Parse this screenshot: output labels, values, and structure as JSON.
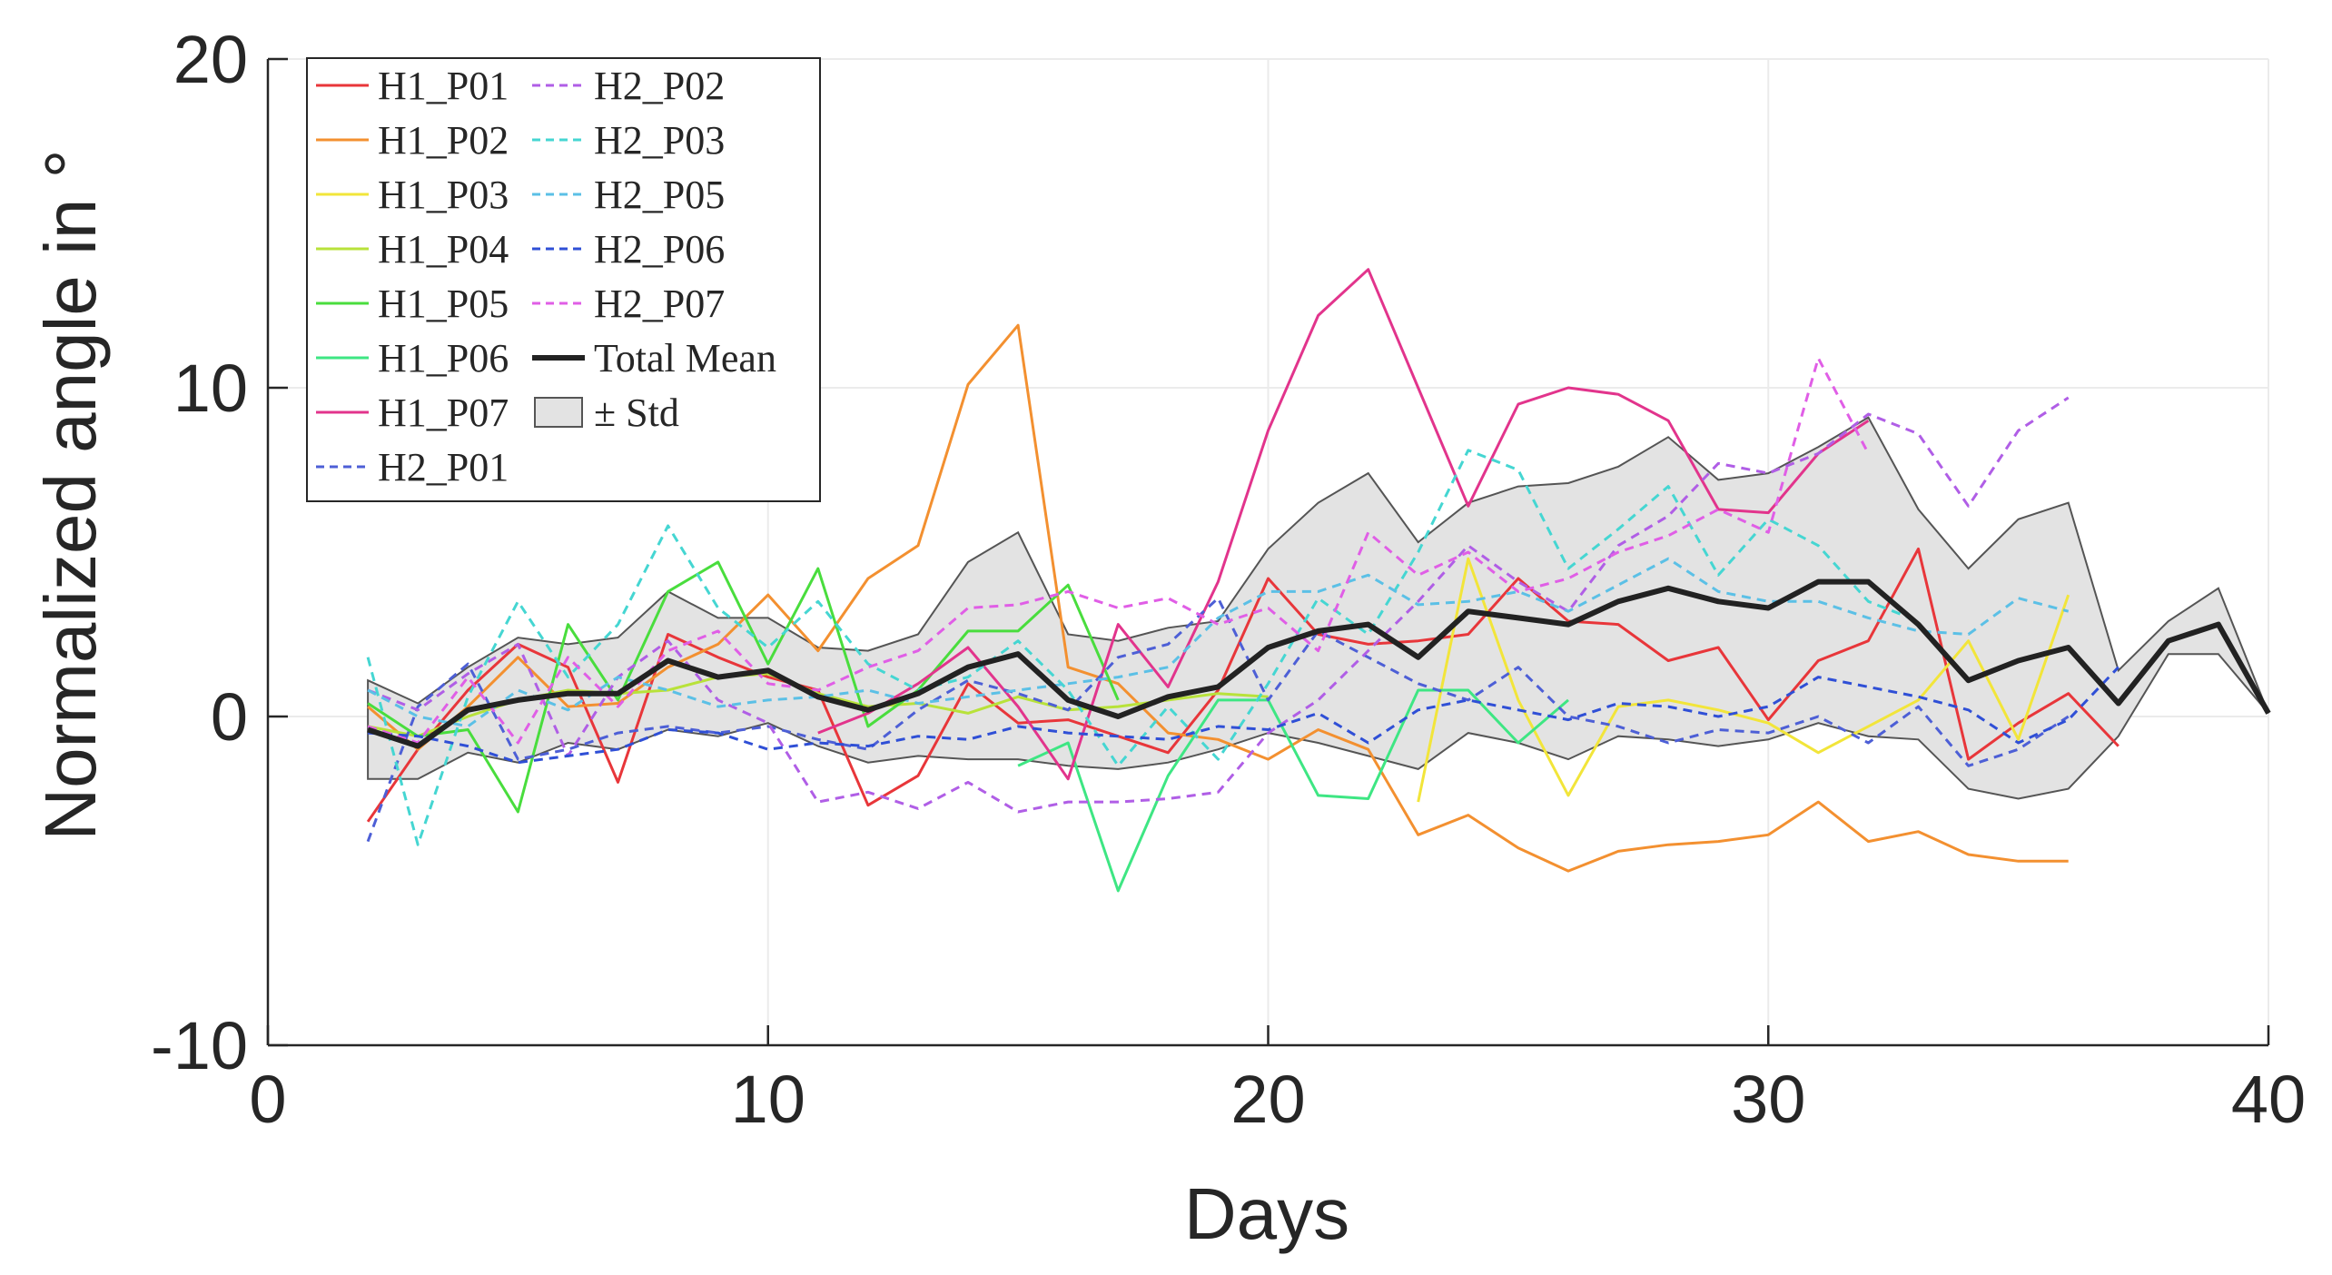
{
  "chart_data": {
    "type": "line",
    "title": "",
    "xlabel": "Days",
    "ylabel": "Normalized angle in °",
    "xlim": [
      0,
      40
    ],
    "ylim": [
      -10,
      20
    ],
    "xticks": [
      0,
      10,
      20,
      30,
      40
    ],
    "yticks": [
      -10,
      0,
      10,
      20
    ],
    "xtick_labels": [
      "0",
      "10",
      "20",
      "30",
      "40"
    ],
    "ytick_labels": [
      "-10",
      "0",
      "10",
      "20"
    ],
    "grid": true,
    "legend_position": "top-left",
    "series": [
      {
        "name": "H1_P01",
        "color": "#e8363a",
        "style": "solid",
        "x": [
          2,
          3,
          4,
          5,
          6,
          7,
          8,
          9,
          10,
          11,
          12,
          13,
          14,
          15,
          16,
          17,
          18,
          19,
          20,
          21,
          22,
          23,
          24,
          25,
          26,
          27,
          28,
          29,
          30,
          31,
          32,
          33,
          34,
          35,
          36,
          37
        ],
        "y": [
          -3.2,
          -1.0,
          0.8,
          2.2,
          1.5,
          -2.0,
          2.5,
          1.8,
          1.2,
          0.8,
          -2.7,
          -1.8,
          1.0,
          -0.2,
          -0.1,
          -0.6,
          -1.1,
          0.8,
          4.2,
          2.5,
          2.2,
          2.3,
          2.5,
          4.2,
          2.9,
          2.8,
          1.7,
          2.1,
          -0.1,
          1.7,
          2.3,
          5.1,
          -1.3,
          -0.2,
          0.7,
          -0.9
        ]
      },
      {
        "name": "H1_P02",
        "color": "#f39030",
        "style": "solid",
        "x": [
          2,
          3,
          4,
          5,
          6,
          7,
          8,
          9,
          10,
          11,
          12,
          13,
          14,
          15,
          16,
          17,
          18,
          19,
          20,
          21,
          22,
          23,
          24,
          25,
          26,
          27,
          28,
          29,
          30,
          31,
          32,
          33,
          34,
          35,
          36
        ],
        "y": [
          0.3,
          -1.0,
          0.3,
          1.8,
          0.3,
          0.4,
          1.5,
          2.2,
          3.7,
          2.0,
          4.2,
          5.2,
          10.1,
          11.9,
          1.5,
          1.0,
          -0.5,
          -0.7,
          -1.3,
          -0.4,
          -1.0,
          -3.6,
          -3.0,
          -4.0,
          -4.7,
          -4.1,
          -3.9,
          -3.8,
          -3.6,
          -2.6,
          -3.8,
          -3.5,
          -4.2,
          -4.4,
          -4.4
        ]
      },
      {
        "name": "H1_P03",
        "color": "#f2e53a",
        "style": "solid",
        "x": [
          23,
          24,
          25,
          26,
          27,
          28,
          29,
          30,
          31,
          32,
          33,
          34,
          35,
          36
        ],
        "y": [
          -2.6,
          4.8,
          0.5,
          -2.4,
          0.3,
          0.5,
          0.2,
          -0.2,
          -1.1,
          -0.3,
          0.5,
          2.3,
          -0.7,
          3.7
        ]
      },
      {
        "name": "H1_P04",
        "color": "#b8e23a",
        "style": "solid",
        "x": [
          2,
          3,
          4,
          5,
          6,
          7,
          8,
          9,
          10,
          11,
          12,
          13,
          14,
          15,
          16,
          17,
          18,
          19,
          20
        ],
        "y": [
          -0.3,
          -0.6,
          0.0,
          0.5,
          0.8,
          0.7,
          0.8,
          1.2,
          1.3,
          0.7,
          0.3,
          0.4,
          0.1,
          0.6,
          0.2,
          0.3,
          0.5,
          0.7,
          0.6
        ]
      },
      {
        "name": "H1_P05",
        "color": "#49dd3d",
        "style": "solid",
        "x": [
          2,
          3,
          4,
          5,
          6,
          7,
          8,
          9,
          10,
          11,
          12,
          13,
          14,
          15,
          16,
          17
        ],
        "y": [
          0.4,
          -0.6,
          -0.4,
          -2.9,
          2.8,
          0.5,
          3.8,
          4.7,
          1.6,
          4.5,
          -0.3,
          0.8,
          2.6,
          2.6,
          4.0,
          0.5
        ]
      },
      {
        "name": "H1_P06",
        "color": "#3ee683",
        "style": "solid",
        "x": [
          15,
          16,
          17,
          18,
          19,
          20,
          21,
          22,
          23,
          24,
          25,
          26
        ],
        "y": [
          -1.5,
          -0.8,
          -5.3,
          -1.8,
          0.5,
          0.5,
          -2.4,
          -2.5,
          0.8,
          0.8,
          -0.8,
          0.5
        ]
      },
      {
        "name": "H1_P07",
        "color": "#e2348c",
        "style": "solid",
        "x": [
          11,
          12,
          13,
          14,
          15,
          16,
          17,
          18,
          19,
          20,
          21,
          22,
          23,
          24,
          25,
          26,
          27,
          28,
          29,
          30,
          31,
          32
        ],
        "y": [
          -0.5,
          0.1,
          1.0,
          2.1,
          0.3,
          -1.9,
          2.8,
          0.9,
          4.1,
          8.7,
          12.2,
          13.6,
          10.0,
          6.4,
          9.5,
          10.0,
          9.8,
          9.0,
          6.3,
          6.2,
          8.0,
          9.0
        ]
      },
      {
        "name": "H2_P01",
        "color": "#4d5fd6",
        "style": "dashed",
        "x": [
          2,
          3,
          4,
          5,
          6,
          7,
          8,
          9,
          10,
          11,
          12,
          13,
          14,
          15,
          16,
          17,
          18,
          19,
          20,
          21,
          22,
          23,
          24,
          25,
          26,
          27,
          28,
          29,
          30,
          31,
          32,
          33,
          34,
          35,
          36
        ],
        "y": [
          -3.8,
          0.3,
          1.6,
          -1.3,
          -1.0,
          -0.5,
          -0.3,
          -0.5,
          -0.3,
          -0.7,
          -1.0,
          0.2,
          1.1,
          0.7,
          0.2,
          1.8,
          2.2,
          3.6,
          0.5,
          2.6,
          1.8,
          1.0,
          0.5,
          1.5,
          0.0,
          -0.3,
          -0.8,
          -0.4,
          -0.5,
          0.0,
          -0.8,
          0.3,
          -1.5,
          -1.0,
          0.0
        ]
      },
      {
        "name": "H2_P02",
        "color": "#b05ee6",
        "style": "dashed",
        "x": [
          2,
          3,
          4,
          5,
          6,
          7,
          8,
          9,
          10,
          11,
          12,
          13,
          14,
          15,
          16,
          17,
          18,
          19,
          20,
          21,
          22,
          23,
          24,
          25,
          26,
          27,
          28,
          29,
          30,
          31,
          32,
          33,
          34,
          35,
          36
        ],
        "y": [
          0.8,
          0.2,
          1.3,
          2.2,
          -1.2,
          1.2,
          2.3,
          0.5,
          -0.2,
          -2.6,
          -2.3,
          -2.8,
          -2.0,
          -2.9,
          -2.6,
          -2.6,
          -2.5,
          -2.3,
          -0.5,
          0.5,
          2.0,
          3.5,
          5.2,
          4.1,
          3.2,
          5.2,
          6.1,
          7.7,
          7.4,
          8.0,
          9.2,
          8.6,
          6.4,
          8.7,
          9.7
        ]
      },
      {
        "name": "H2_P03",
        "color": "#45d6d2",
        "style": "dashed",
        "x": [
          2,
          3,
          4,
          5,
          6,
          7,
          8,
          9,
          10,
          11,
          12,
          13,
          14,
          15,
          16,
          17,
          18,
          19,
          20,
          21,
          22,
          23,
          24,
          25,
          26,
          27,
          28,
          29,
          30,
          31,
          32,
          33
        ],
        "y": [
          1.8,
          -3.9,
          0.6,
          3.5,
          1.2,
          2.8,
          5.8,
          3.3,
          2.1,
          3.5,
          1.6,
          0.8,
          1.2,
          2.3,
          0.8,
          -1.5,
          0.3,
          -1.3,
          1.0,
          3.6,
          2.5,
          5.0,
          8.1,
          7.5,
          4.5,
          5.7,
          7.0,
          4.3,
          6.0,
          5.2,
          3.5,
          2.9
        ]
      },
      {
        "name": "H2_P05",
        "color": "#5bc0e6",
        "style": "dashed",
        "x": [
          2,
          3,
          4,
          5,
          6,
          7,
          8,
          9,
          10,
          11,
          12,
          13,
          14,
          15,
          16,
          17,
          18,
          19,
          20,
          21,
          22,
          23,
          24,
          25,
          26,
          27,
          28,
          29,
          30,
          31,
          32,
          33,
          34,
          35,
          36
        ],
        "y": [
          0.8,
          0.0,
          -0.3,
          0.8,
          0.2,
          1.2,
          0.8,
          0.3,
          0.5,
          0.6,
          0.8,
          0.4,
          0.6,
          0.8,
          1.0,
          1.2,
          1.5,
          3.0,
          3.8,
          3.8,
          4.3,
          3.4,
          3.5,
          3.8,
          3.2,
          4.0,
          4.8,
          3.8,
          3.5,
          3.5,
          3.0,
          2.6,
          2.5,
          3.6,
          3.2
        ]
      },
      {
        "name": "H2_P06",
        "color": "#2f4fd6",
        "style": "dashed",
        "x": [
          2,
          3,
          4,
          5,
          6,
          7,
          8,
          9,
          10,
          11,
          12,
          13,
          14,
          15,
          16,
          17,
          18,
          19,
          20,
          21,
          22,
          23,
          24,
          25,
          26,
          27,
          28,
          29,
          30,
          31,
          32,
          33,
          34,
          35,
          36,
          37
        ],
        "y": [
          -0.5,
          -0.6,
          -0.9,
          -1.4,
          -1.2,
          -1.0,
          -0.4,
          -0.5,
          -1.0,
          -0.8,
          -0.9,
          -0.6,
          -0.7,
          -0.3,
          -0.5,
          -0.6,
          -0.7,
          -0.3,
          -0.4,
          0.1,
          -0.8,
          0.2,
          0.5,
          0.2,
          -0.1,
          0.4,
          0.3,
          0.0,
          0.3,
          1.2,
          0.9,
          0.6,
          0.2,
          -0.8,
          -0.1,
          1.5
        ]
      },
      {
        "name": "H2_P07",
        "color": "#e05ee6",
        "style": "dashed",
        "x": [
          2,
          3,
          4,
          5,
          6,
          7,
          8,
          9,
          10,
          11,
          12,
          13,
          14,
          15,
          16,
          17,
          18,
          19,
          20,
          21,
          22,
          23,
          24,
          25,
          26,
          27,
          28,
          29,
          30,
          31,
          32
        ],
        "y": [
          -0.3,
          -0.8,
          1.2,
          -0.8,
          1.8,
          0.3,
          2.0,
          2.6,
          1.0,
          0.8,
          1.5,
          2.0,
          3.3,
          3.4,
          3.8,
          3.3,
          3.6,
          2.8,
          3.3,
          2.0,
          5.6,
          4.3,
          5.0,
          3.8,
          4.2,
          5.0,
          5.5,
          6.3,
          5.6,
          10.9,
          8.0
        ]
      },
      {
        "name": "Total Mean",
        "color": "#222222",
        "style": "solid",
        "width": "thick",
        "x": [
          2,
          3,
          4,
          5,
          6,
          7,
          8,
          9,
          10,
          11,
          12,
          13,
          14,
          15,
          16,
          17,
          18,
          19,
          20,
          21,
          22,
          23,
          24,
          25,
          26,
          27,
          28,
          29,
          30,
          31,
          32,
          33,
          34,
          35,
          36,
          37,
          38,
          39,
          40
        ],
        "y": [
          -0.4,
          -0.9,
          0.2,
          0.5,
          0.7,
          0.7,
          1.7,
          1.2,
          1.4,
          0.6,
          0.2,
          0.7,
          1.5,
          1.9,
          0.5,
          0.0,
          0.6,
          0.9,
          2.1,
          2.6,
          2.8,
          1.8,
          3.2,
          3.0,
          2.8,
          3.5,
          3.9,
          3.5,
          3.3,
          4.1,
          4.1,
          2.8,
          1.1,
          1.7,
          2.1,
          0.4,
          2.3,
          2.8,
          0.1
        ]
      }
    ],
    "std_band": {
      "name": "± Std",
      "fill": "#e3e3e3",
      "edge": "#555555",
      "x": [
        2,
        3,
        4,
        5,
        6,
        7,
        8,
        9,
        10,
        11,
        12,
        13,
        14,
        15,
        16,
        17,
        18,
        19,
        20,
        21,
        22,
        23,
        24,
        25,
        26,
        27,
        28,
        29,
        30,
        31,
        32,
        33,
        34,
        35,
        36,
        37,
        38,
        39,
        40
      ],
      "upper": [
        1.1,
        0.4,
        1.5,
        2.4,
        2.2,
        2.4,
        3.8,
        3.0,
        3.0,
        2.1,
        2.0,
        2.5,
        4.7,
        5.6,
        2.5,
        2.3,
        2.7,
        2.9,
        5.1,
        6.5,
        7.4,
        5.3,
        6.5,
        7.0,
        7.1,
        7.6,
        8.5,
        7.2,
        7.4,
        8.2,
        9.1,
        6.3,
        4.5,
        6.0,
        6.5,
        1.4,
        2.9,
        3.9,
        0.1
      ],
      "lower": [
        -1.9,
        -1.9,
        -1.1,
        -1.4,
        -0.8,
        -1.0,
        -0.4,
        -0.6,
        -0.2,
        -0.9,
        -1.4,
        -1.2,
        -1.3,
        -1.3,
        -1.5,
        -1.6,
        -1.4,
        -1.0,
        -0.5,
        -0.8,
        -1.2,
        -1.6,
        -0.5,
        -0.8,
        -1.3,
        -0.6,
        -0.7,
        -0.9,
        -0.7,
        -0.2,
        -0.6,
        -0.7,
        -2.2,
        -2.5,
        -2.2,
        -0.6,
        1.9,
        1.9,
        0.1
      ]
    },
    "legend": {
      "col1": [
        "H1_P01",
        "H1_P02",
        "H1_P03",
        "H1_P04",
        "H1_P05",
        "H1_P06",
        "H1_P07",
        "H2_P01"
      ],
      "col2": [
        "H2_P02",
        "H2_P03",
        "H2_P05",
        "H2_P06",
        "H2_P07",
        "Total Mean",
        "± Std"
      ]
    }
  }
}
